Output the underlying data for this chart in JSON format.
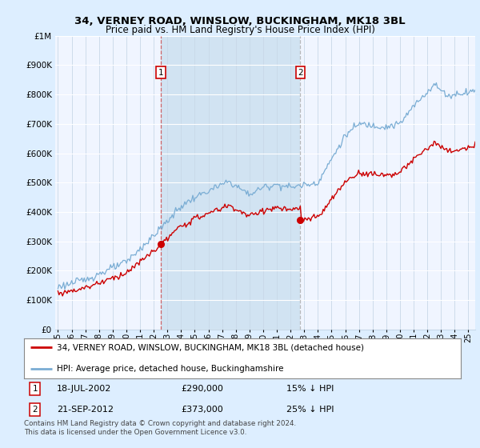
{
  "title": "34, VERNEY ROAD, WINSLOW, BUCKINGHAM, MK18 3BL",
  "subtitle": "Price paid vs. HM Land Registry's House Price Index (HPI)",
  "legend_line1": "34, VERNEY ROAD, WINSLOW, BUCKINGHAM, MK18 3BL (detached house)",
  "legend_line2": "HPI: Average price, detached house, Buckinghamshire",
  "footnote": "Contains HM Land Registry data © Crown copyright and database right 2024.\nThis data is licensed under the Open Government Licence v3.0.",
  "sale1_date": "18-JUL-2002",
  "sale1_price": 290000,
  "sale1_label": "£290,000",
  "sale1_pct": "15% ↓ HPI",
  "sale1_year": 2002.54,
  "sale2_date": "21-SEP-2012",
  "sale2_price": 373000,
  "sale2_label": "£373,000",
  "sale2_pct": "25% ↓ HPI",
  "sale2_year": 2012.72,
  "red_color": "#cc0000",
  "blue_color": "#7aadd4",
  "shade_color": "#cce0f0",
  "bg_color": "#ddeeff",
  "plot_bg": "#f0f5ff",
  "grid_color": "#c8d8e8",
  "ylim_min": 0,
  "ylim_max": 1000000,
  "xlim_min": 1994.8,
  "xlim_max": 2025.5
}
